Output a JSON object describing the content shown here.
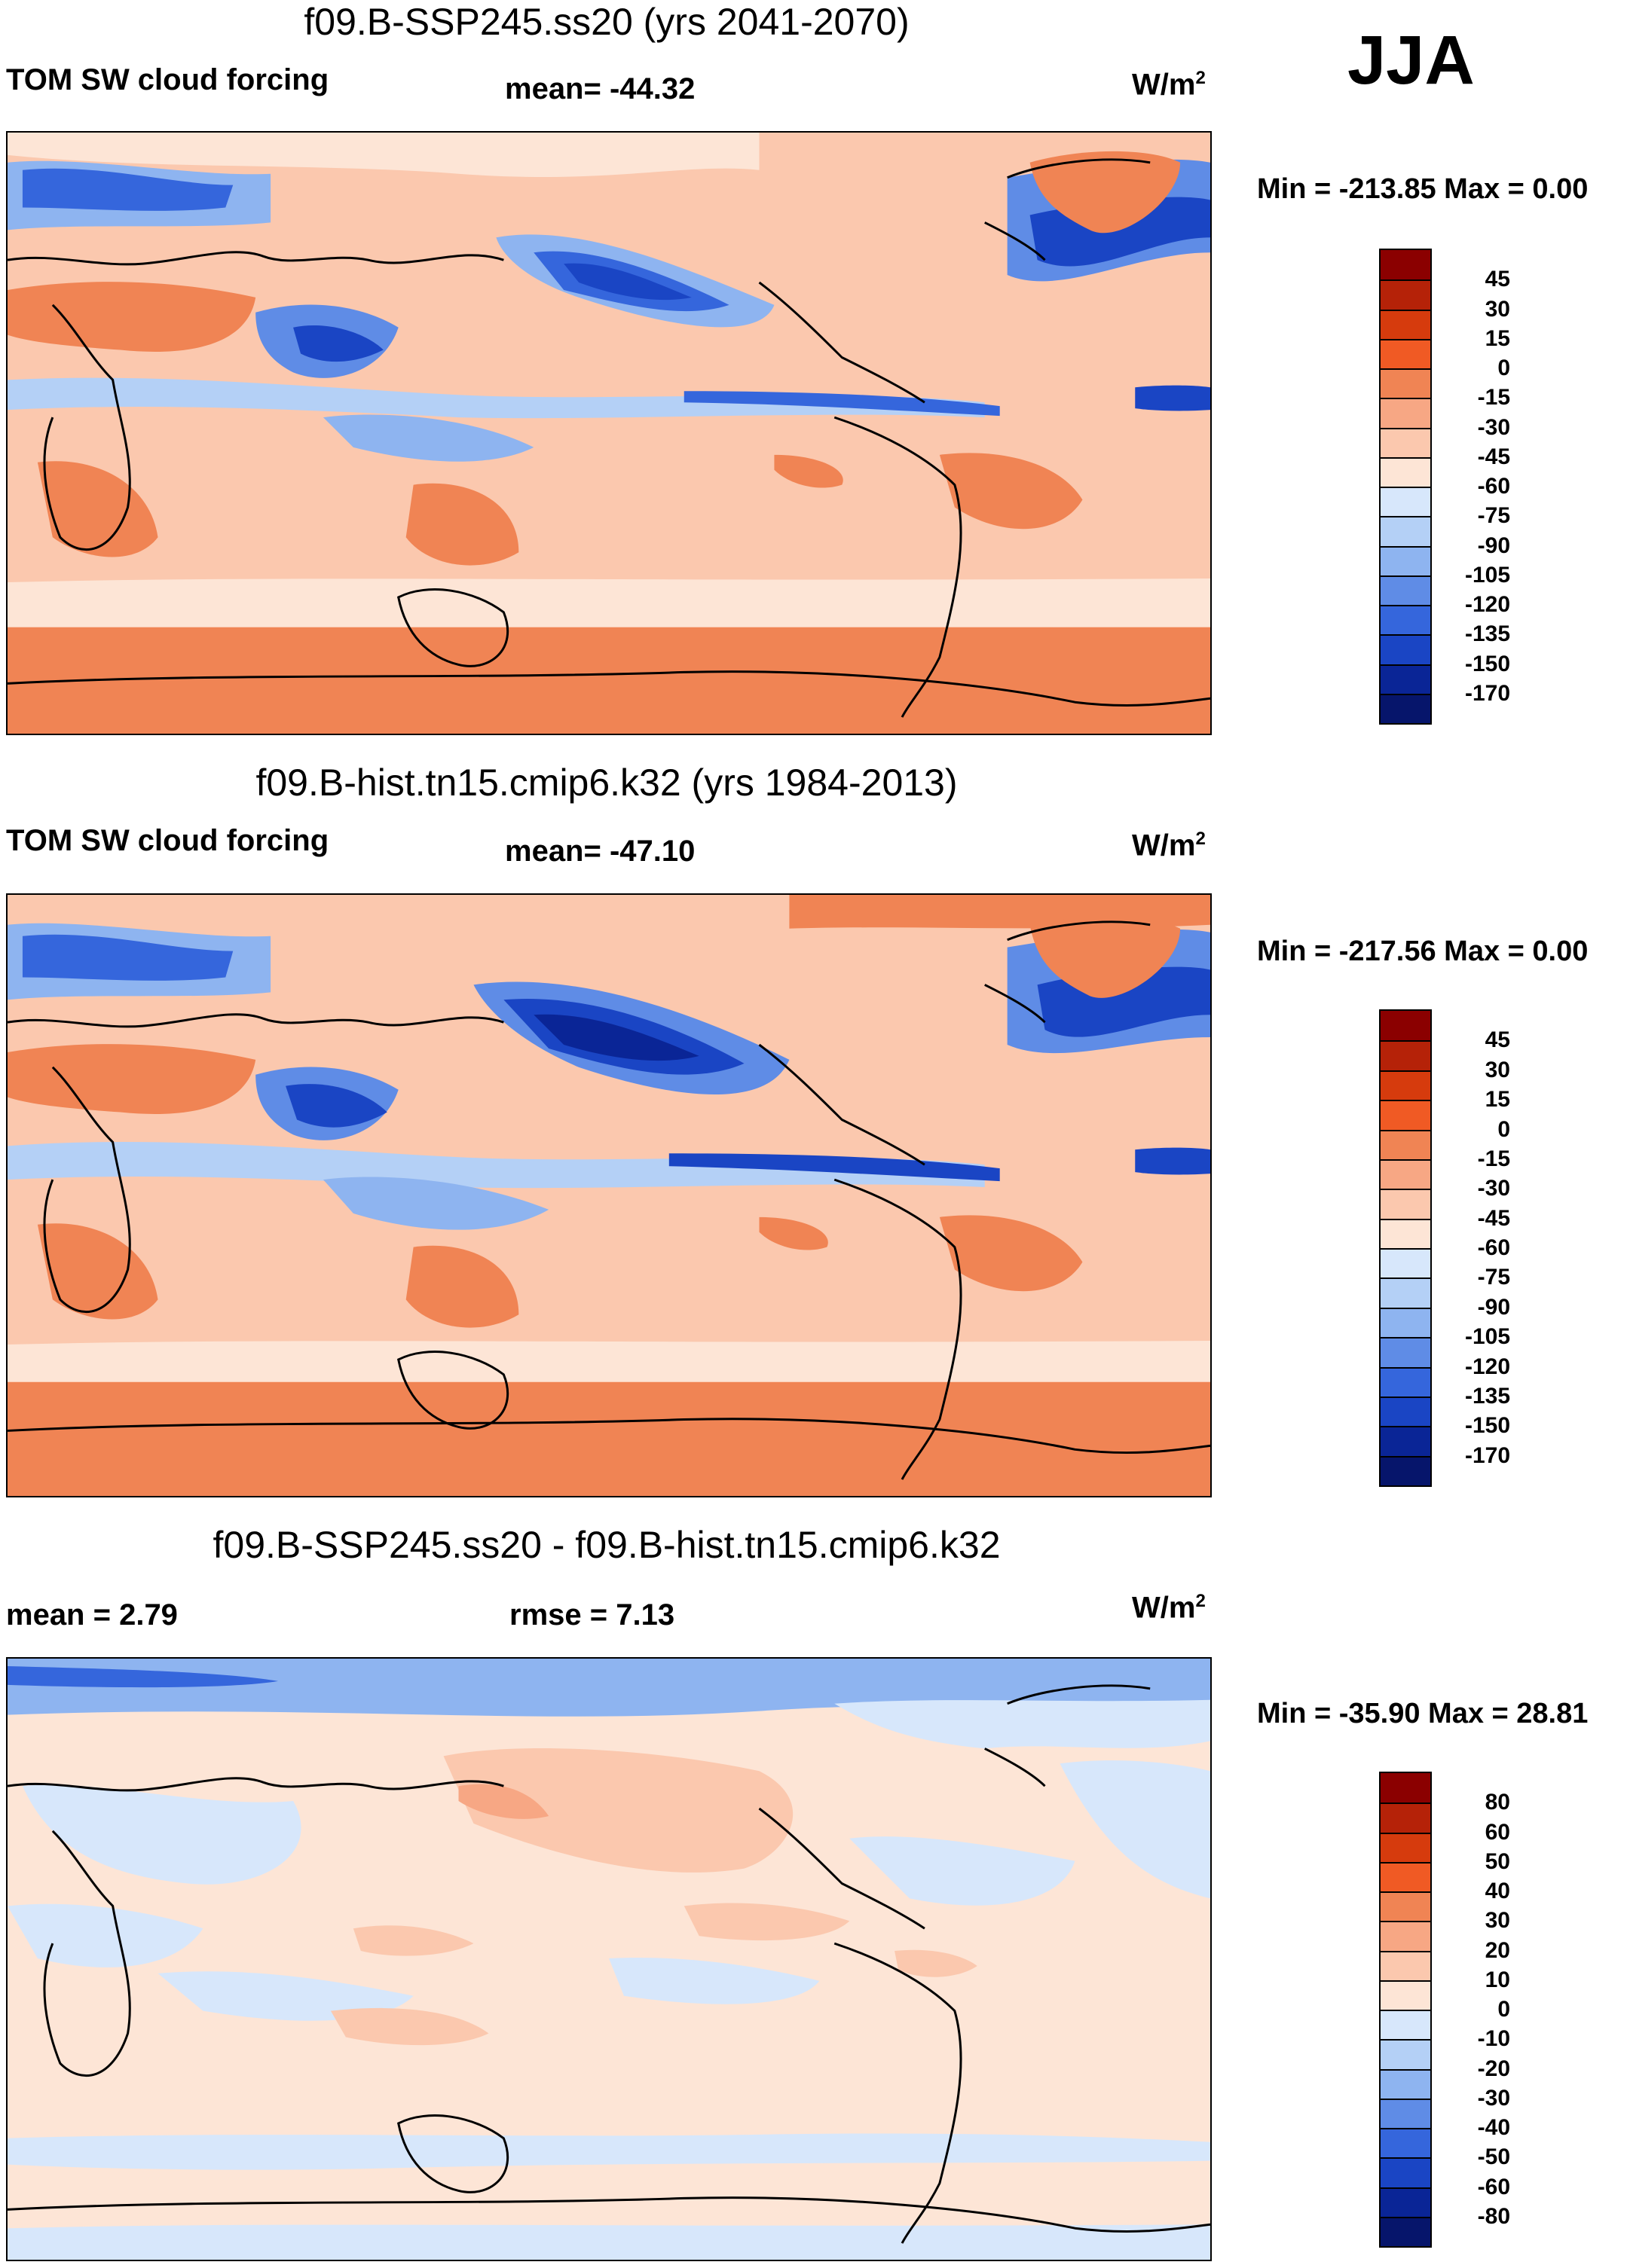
{
  "season": "JJA",
  "panels": [
    {
      "title": "f09.B-SSP245.ss20 (yrs 2041-2070)",
      "left_label": "TOM SW cloud forcing",
      "center_label": "mean= -44.32",
      "units": "W/m",
      "units_sup": "2",
      "minmax": "Min = -213.85 Max =   0.00",
      "colorbar_labels": [
        "45",
        "30",
        "15",
        "0",
        "-15",
        "-30",
        "-45",
        "-60",
        "-75",
        "-90",
        "-105",
        "-120",
        "-135",
        "-150",
        "-170"
      ],
      "colorbar_colors": [
        "#8b0000",
        "#b52208",
        "#d63b0d",
        "#f05a24",
        "#f08454",
        "#f7a784",
        "#fbc8ae",
        "#fde5d6",
        "#d7e7fb",
        "#b4d0f6",
        "#8eb4f0",
        "#5f8ce6",
        "#3566dc",
        "#1a45c4",
        "#0a2596",
        "#06156b"
      ]
    },
    {
      "title": "f09.B-hist.tn15.cmip6.k32 (yrs 1984-2013)",
      "left_label": "TOM SW cloud forcing",
      "center_label": "mean= -47.10",
      "units": "W/m",
      "units_sup": "2",
      "minmax": "Min = -217.56 Max =   0.00",
      "colorbar_labels": [
        "45",
        "30",
        "15",
        "0",
        "-15",
        "-30",
        "-45",
        "-60",
        "-75",
        "-90",
        "-105",
        "-120",
        "-135",
        "-150",
        "-170"
      ],
      "colorbar_colors": [
        "#8b0000",
        "#b52208",
        "#d63b0d",
        "#f05a24",
        "#f08454",
        "#f7a784",
        "#fbc8ae",
        "#fde5d6",
        "#d7e7fb",
        "#b4d0f6",
        "#8eb4f0",
        "#5f8ce6",
        "#3566dc",
        "#1a45c4",
        "#0a2596",
        "#06156b"
      ]
    },
    {
      "title": "f09.B-SSP245.ss20 - f09.B-hist.tn15.cmip6.k32",
      "left_label": "mean =    2.79",
      "center_label": "rmse =    7.13",
      "units": "W/m",
      "units_sup": "2",
      "minmax": "Min = -35.90 Max =  28.81",
      "colorbar_labels": [
        "80",
        "60",
        "50",
        "40",
        "30",
        "20",
        "10",
        "0",
        "-10",
        "-20",
        "-30",
        "-40",
        "-50",
        "-60",
        "-80"
      ],
      "colorbar_colors": [
        "#8b0000",
        "#b52208",
        "#d63b0d",
        "#f05a24",
        "#f08454",
        "#f7a784",
        "#fbc8ae",
        "#fde5d6",
        "#d7e7fb",
        "#b4d0f6",
        "#8eb4f0",
        "#5f8ce6",
        "#3566dc",
        "#1a45c4",
        "#0a2596",
        "#06156b"
      ]
    }
  ]
}
